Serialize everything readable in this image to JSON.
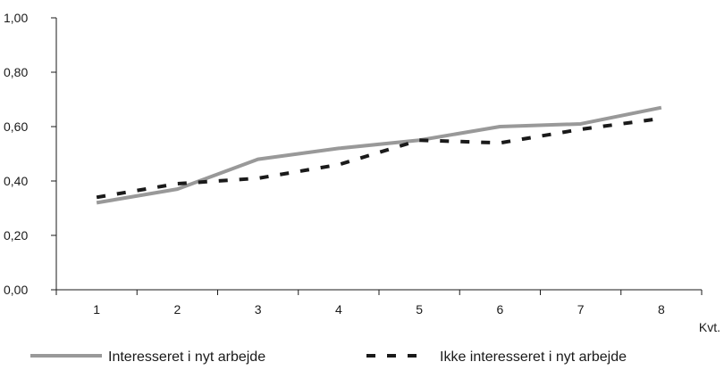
{
  "chart_data": {
    "type": "line",
    "title": "",
    "xlabel": "Kvt.",
    "ylabel": "",
    "categories": [
      "1",
      "2",
      "3",
      "4",
      "5",
      "6",
      "7",
      "8"
    ],
    "ylim": [
      0,
      1
    ],
    "y_ticks": [
      "0,00",
      "0,20",
      "0,40",
      "0,60",
      "0,80",
      "1,00"
    ],
    "y_tick_values": [
      0,
      0.2,
      0.4,
      0.6,
      0.8,
      1.0
    ],
    "grid": false,
    "legend_position": "bottom",
    "series": [
      {
        "name": "Interesseret i nyt arbejde",
        "values": [
          0.32,
          0.37,
          0.48,
          0.52,
          0.55,
          0.6,
          0.61,
          0.67
        ],
        "color": "#999999",
        "style": "solid"
      },
      {
        "name": "Ikke interesseret i nyt arbejde",
        "values": [
          0.34,
          0.39,
          0.41,
          0.46,
          0.55,
          0.54,
          0.59,
          0.63
        ],
        "color": "#1a1a1a",
        "style": "dashed"
      }
    ]
  }
}
